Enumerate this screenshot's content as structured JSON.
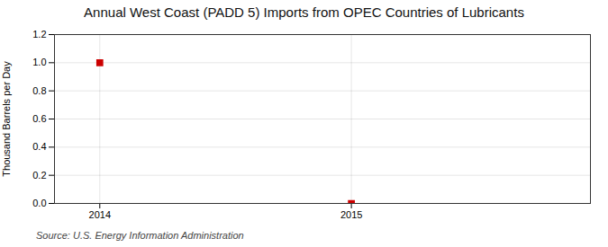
{
  "chart_data": {
    "type": "scatter",
    "title": "Annual West Coast (PADD 5) Imports from OPEC Countries of Lubricants",
    "ylabel": "Thousand Barrels per Day",
    "source": "Source: U.S. Energy Information Administration",
    "x": [
      2014.0,
      2015.0
    ],
    "values": [
      1.0,
      0.0
    ],
    "color": "#cc0000",
    "marker": "square",
    "xlim": [
      2013.82,
      2015.95
    ],
    "xticks": [
      2014,
      2015
    ],
    "ylim": [
      0.0,
      1.2
    ],
    "yticks": [
      {
        "value": 0.0,
        "label": "0.0"
      },
      0.2,
      0.4,
      0.6,
      0.8,
      {
        "value": 1.0,
        "label": "1.0"
      },
      1.2
    ],
    "grid": true
  }
}
